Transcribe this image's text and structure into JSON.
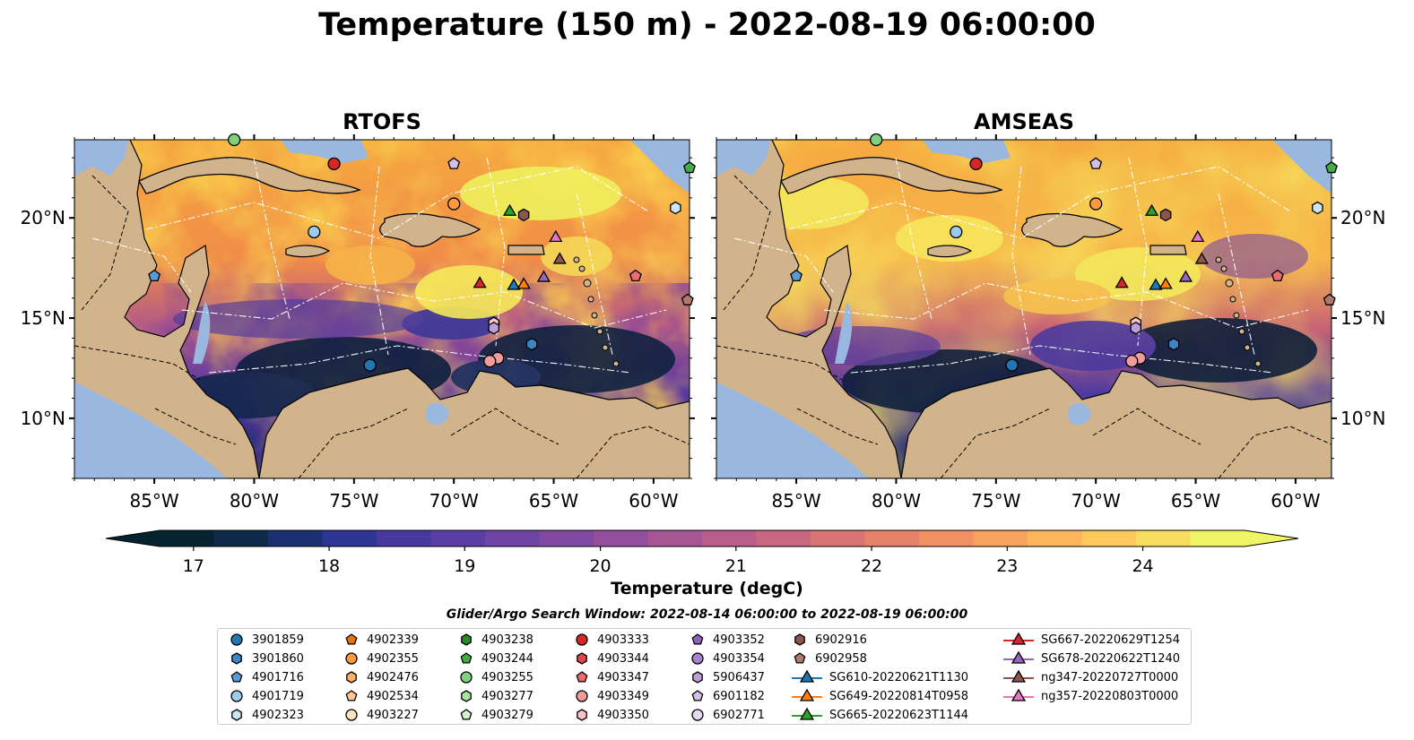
{
  "figure_title": "Temperature (150 m) - 2022-08-19 06:00:00",
  "panels": [
    {
      "title": "RTOFS"
    },
    {
      "title": "AMSEAS"
    }
  ],
  "axes": {
    "lon_labels": [
      "85°W",
      "80°W",
      "75°W",
      "70°W",
      "65°W",
      "60°W"
    ],
    "lon_values": [
      -85,
      -80,
      -75,
      -70,
      -65,
      -60
    ],
    "lat_labels": [
      "20°N",
      "15°N",
      "10°N"
    ],
    "lat_values": [
      20,
      15,
      10
    ],
    "lon_range": [
      -89,
      -58.2
    ],
    "lat_range": [
      7.0,
      23.9
    ]
  },
  "colorbar": {
    "label": "Temperature (degC)",
    "ticks": [
      "17",
      "18",
      "19",
      "20",
      "21",
      "22",
      "23",
      "24"
    ],
    "tick_values": [
      17,
      18,
      19,
      20,
      21,
      22,
      23,
      24
    ],
    "range": [
      16.75,
      24.75
    ],
    "extend": "both",
    "colors": [
      "#04232f",
      "#0e2a4a",
      "#1b2f73",
      "#2e3592",
      "#45399f",
      "#5b3ea3",
      "#6e44a4",
      "#8149a2",
      "#944f9c",
      "#a75694",
      "#b95e8b",
      "#ca6780",
      "#d97374",
      "#e6816a",
      "#f19163",
      "#f8a25d",
      "#fcb55a",
      "#fcc95a",
      "#f8de5e",
      "#eff564"
    ]
  },
  "legend": {
    "title": "Glider/Argo Search Window: 2022-08-14 06:00:00 to 2022-08-19 06:00:00",
    "columns": [
      [
        {
          "label": "3901859",
          "marker": "circle",
          "color": "#1f77b4"
        },
        {
          "label": "3901860",
          "marker": "hexagon",
          "color": "#3b86c6"
        },
        {
          "label": "4901716",
          "marker": "pentagon",
          "color": "#5a9bd5"
        },
        {
          "label": "4901719",
          "marker": "circle",
          "color": "#9ccbec"
        },
        {
          "label": "4902323",
          "marker": "hexagon",
          "color": "#cde6f7"
        }
      ],
      [
        {
          "label": "4902339",
          "marker": "pentagon",
          "color": "#e8740e"
        },
        {
          "label": "4902355",
          "marker": "circle",
          "color": "#fd9a3f"
        },
        {
          "label": "4902476",
          "marker": "hexagon",
          "color": "#fdb36b"
        },
        {
          "label": "4902534",
          "marker": "pentagon",
          "color": "#fdc894"
        },
        {
          "label": "4903227",
          "marker": "circle",
          "color": "#fde2c2"
        }
      ],
      [
        {
          "label": "4903238",
          "marker": "hexagon",
          "color": "#2a8a2a"
        },
        {
          "label": "4903244",
          "marker": "pentagon",
          "color": "#43ad43"
        },
        {
          "label": "4903255",
          "marker": "circle",
          "color": "#7fd17f"
        },
        {
          "label": "4903277",
          "marker": "hexagon",
          "color": "#a9e4a2"
        },
        {
          "label": "4903279",
          "marker": "pentagon",
          "color": "#d3f2cd"
        }
      ],
      [
        {
          "label": "4903333",
          "marker": "circle",
          "color": "#d62728"
        },
        {
          "label": "4903344",
          "marker": "hexagon",
          "color": "#e0474a"
        },
        {
          "label": "4903347",
          "marker": "pentagon",
          "color": "#ea6b70"
        },
        {
          "label": "4903349",
          "marker": "circle",
          "color": "#f39a9c"
        },
        {
          "label": "4903350",
          "marker": "hexagon",
          "color": "#f8c4c3"
        }
      ],
      [
        {
          "label": "4903352",
          "marker": "pentagon",
          "color": "#8e63b7"
        },
        {
          "label": "4903354",
          "marker": "circle",
          "color": "#a584c9"
        },
        {
          "label": "5906437",
          "marker": "hexagon",
          "color": "#bb9fd8"
        },
        {
          "label": "6901182",
          "marker": "pentagon",
          "color": "#d3bfe8"
        },
        {
          "label": "6902771",
          "marker": "circle",
          "color": "#e6dbf5"
        }
      ],
      [
        {
          "label": "6902916",
          "marker": "hexagon",
          "color": "#8c564b"
        },
        {
          "label": "6902958",
          "marker": "pentagon",
          "color": "#b07a6e"
        },
        {
          "label": "SG610-20220621T1130",
          "marker": "triangle-line",
          "color": "#1f77b4"
        },
        {
          "label": "SG649-20220814T0958",
          "marker": "triangle-line",
          "color": "#ff7f0e"
        },
        {
          "label": "SG665-20220623T1144",
          "marker": "triangle-line",
          "color": "#2ca02c"
        }
      ],
      [
        {
          "label": "SG667-20220629T1254",
          "marker": "triangle-line",
          "color": "#d62728"
        },
        {
          "label": "SG678-20220622T1240",
          "marker": "triangle-line",
          "color": "#9467bd"
        },
        {
          "label": "ng347-20220727T0000",
          "marker": "triangle-line",
          "color": "#8c564b"
        },
        {
          "label": "ng357-20220803T0000",
          "marker": "triangle-line",
          "color": "#e377c2"
        }
      ]
    ]
  },
  "map_markers": [
    {
      "label": "4903333",
      "lon": -76.0,
      "lat": 22.7
    },
    {
      "label": "6901182",
      "lon": -70.0,
      "lat": 22.7
    },
    {
      "label": "4903255",
      "lon": -81.0,
      "lat": 23.9
    },
    {
      "label": "4903244",
      "lon": -58.2,
      "lat": 22.5
    },
    {
      "label": "4902355",
      "lon": -70.0,
      "lat": 20.7
    },
    {
      "label": "SG665-20220623T1144",
      "lon": -67.2,
      "lat": 20.3
    },
    {
      "label": "6902916",
      "lon": -66.5,
      "lat": 20.15
    },
    {
      "label": "4902323",
      "lon": -58.9,
      "lat": 20.5
    },
    {
      "label": "4901719",
      "lon": -77.0,
      "lat": 19.3
    },
    {
      "label": "ng357-20220803T0000",
      "lon": -64.9,
      "lat": 19.0
    },
    {
      "label": "ng347-20220727T0000",
      "lon": -64.7,
      "lat": 17.9
    },
    {
      "label": "4901716",
      "lon": -85.0,
      "lat": 17.1
    },
    {
      "label": "4903347",
      "lon": -60.9,
      "lat": 17.1
    },
    {
      "label": "SG678-20220622T1240",
      "lon": -65.5,
      "lat": 17.0
    },
    {
      "label": "SG667-20220629T1254",
      "lon": -68.7,
      "lat": 16.7
    },
    {
      "label": "SG610-20220621T1130",
      "lon": -67.0,
      "lat": 16.6
    },
    {
      "label": "SG649-20220814T0958",
      "lon": -66.5,
      "lat": 16.65
    },
    {
      "label": "6902958",
      "lon": -58.3,
      "lat": 15.9
    },
    {
      "label": "4903350",
      "lon": -68.0,
      "lat": 14.75
    },
    {
      "label": "5906437",
      "lon": -68.0,
      "lat": 14.5
    },
    {
      "label": "3901860",
      "lon": -66.1,
      "lat": 13.7
    },
    {
      "label": "4903349",
      "lon": -67.8,
      "lat": 13.0
    },
    {
      "label": "4903349",
      "lon": -68.2,
      "lat": 12.85
    },
    {
      "label": "3901859",
      "lon": -74.2,
      "lat": 12.65
    }
  ]
}
